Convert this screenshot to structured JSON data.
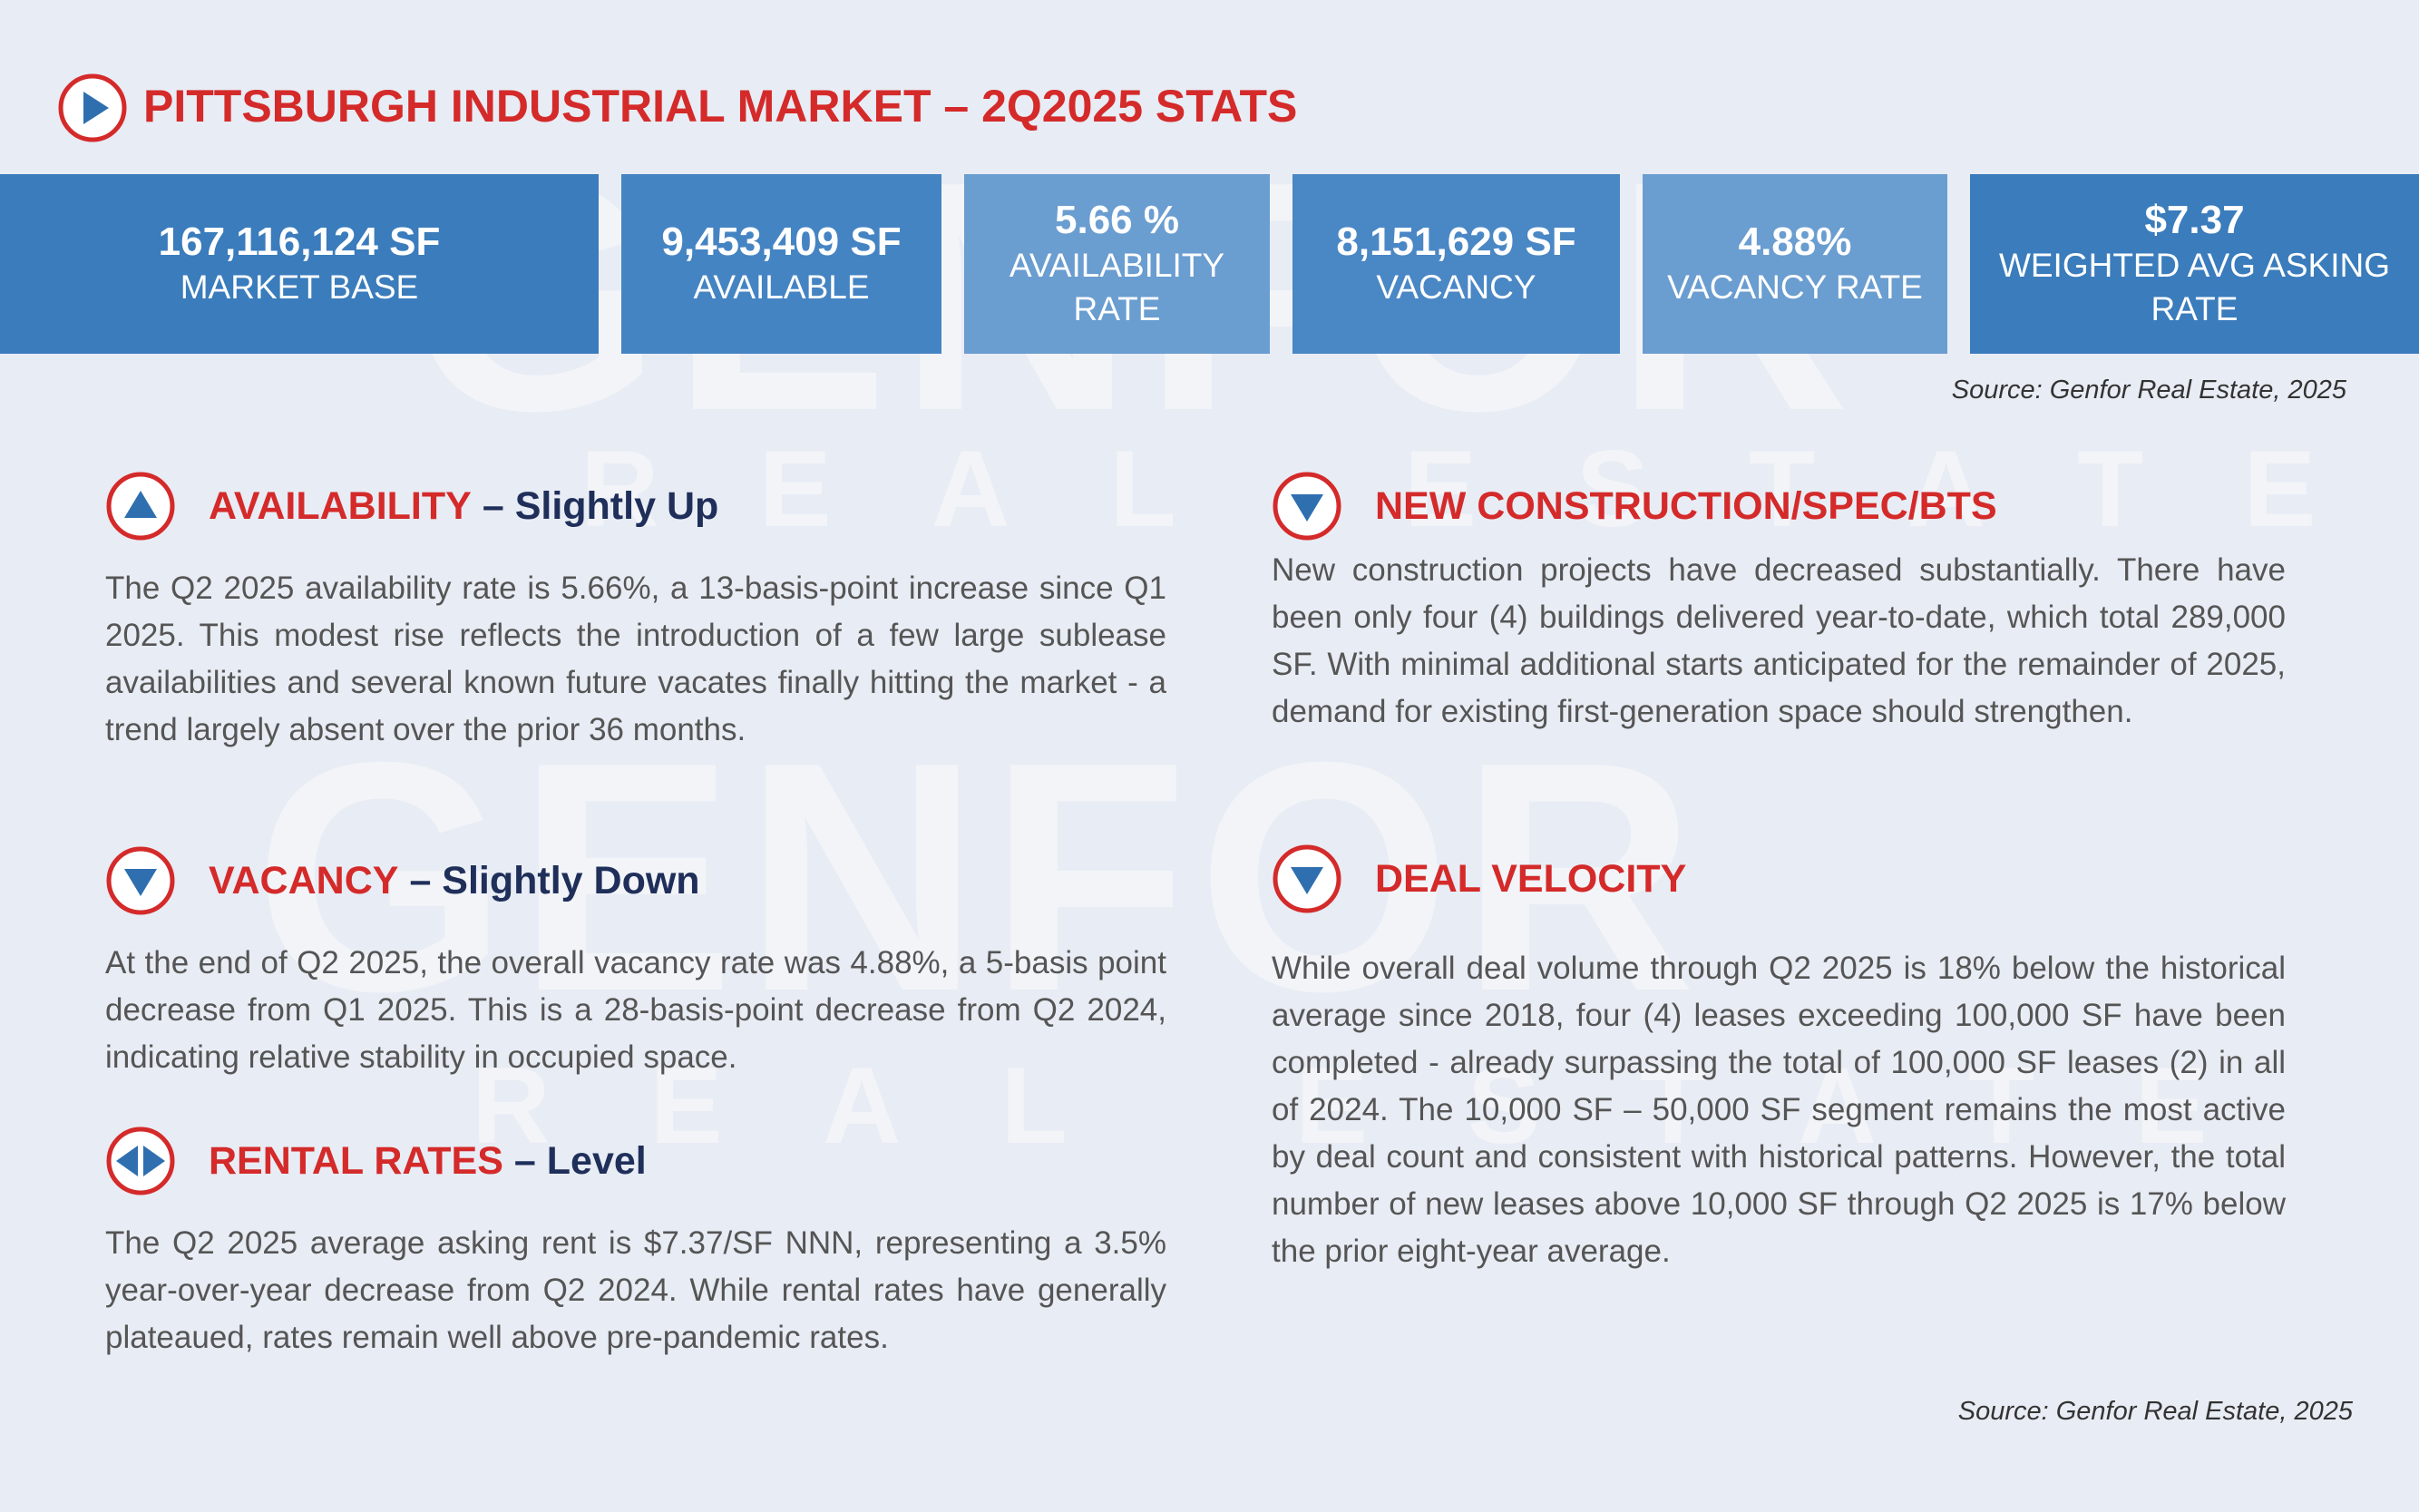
{
  "header": {
    "title": "PITTSBURGH INDUSTRIAL MARKET – 2Q2025 STATS"
  },
  "watermark": {
    "name": "GENFOR",
    "tagline": "REAL ESTATE"
  },
  "stats": [
    {
      "value": "167,116,124 SF",
      "label": "MARKET BASE"
    },
    {
      "value": "9,453,409 SF",
      "label": "AVAILABLE"
    },
    {
      "value": "5.66 %",
      "label": "AVAILABILITY RATE"
    },
    {
      "value": "8,151,629 SF",
      "label": "VACANCY"
    },
    {
      "value": "4.88%",
      "label": "VACANCY RATE"
    },
    {
      "value": "$7.37",
      "label": "WEIGHTED AVG ASKING RATE"
    }
  ],
  "source_top": "Source: Genfor Real Estate, 2025",
  "sections": [
    {
      "heading": "AVAILABILITY",
      "trend": "– Slightly Up",
      "icon": "up",
      "body": "The Q2 2025 availability rate is 5.66%, a 13-basis-point increase since Q1 2025. This modest rise reflects the introduction of a few large sublease availabilities and several known future vacates finally hitting the market - a trend largely absent over the prior 36 months."
    },
    {
      "heading": "VACANCY",
      "trend": "– Slightly Down",
      "icon": "down",
      "body": "At the end of Q2 2025, the overall vacancy rate was 4.88%, a 5-basis point decrease from Q1 2025. This is a 28-basis-point decrease from Q2 2024, indicating relative stability in occupied space."
    },
    {
      "heading": "RENTAL RATES",
      "trend": "– Level",
      "icon": "level",
      "body": "The Q2 2025 average asking rent is $7.37/SF NNN, representing a 3.5% year-over-year decrease from Q2 2024. While rental rates have generally plateaued, rates remain well above pre-pandemic rates."
    },
    {
      "heading": "NEW CONSTRUCTION/SPEC/BTS",
      "icon": "down",
      "body": "New construction projects have decreased substantially. There have been only four (4) buildings delivered year-to-date, which total 289,000 SF. With minimal additional starts anticipated for the remainder of 2025, demand for existing first-generation space should strengthen."
    },
    {
      "heading": "DEAL VELOCITY",
      "icon": "down",
      "body": "While overall deal volume through Q2 2025 is 18% below the historical average since 2018, four (4) leases exceeding 100,000 SF have been completed - already surpassing the total of 100,000 SF leases (2) in all of 2024. The 10,000 SF – 50,000 SF segment remains the most active by deal count and consistent with historical patterns. However, the total number of new leases above 10,000 SF through Q2 2025 is 17% below the prior eight-year average."
    }
  ],
  "source_bottom": "Source: Genfor Real Estate, 2025"
}
